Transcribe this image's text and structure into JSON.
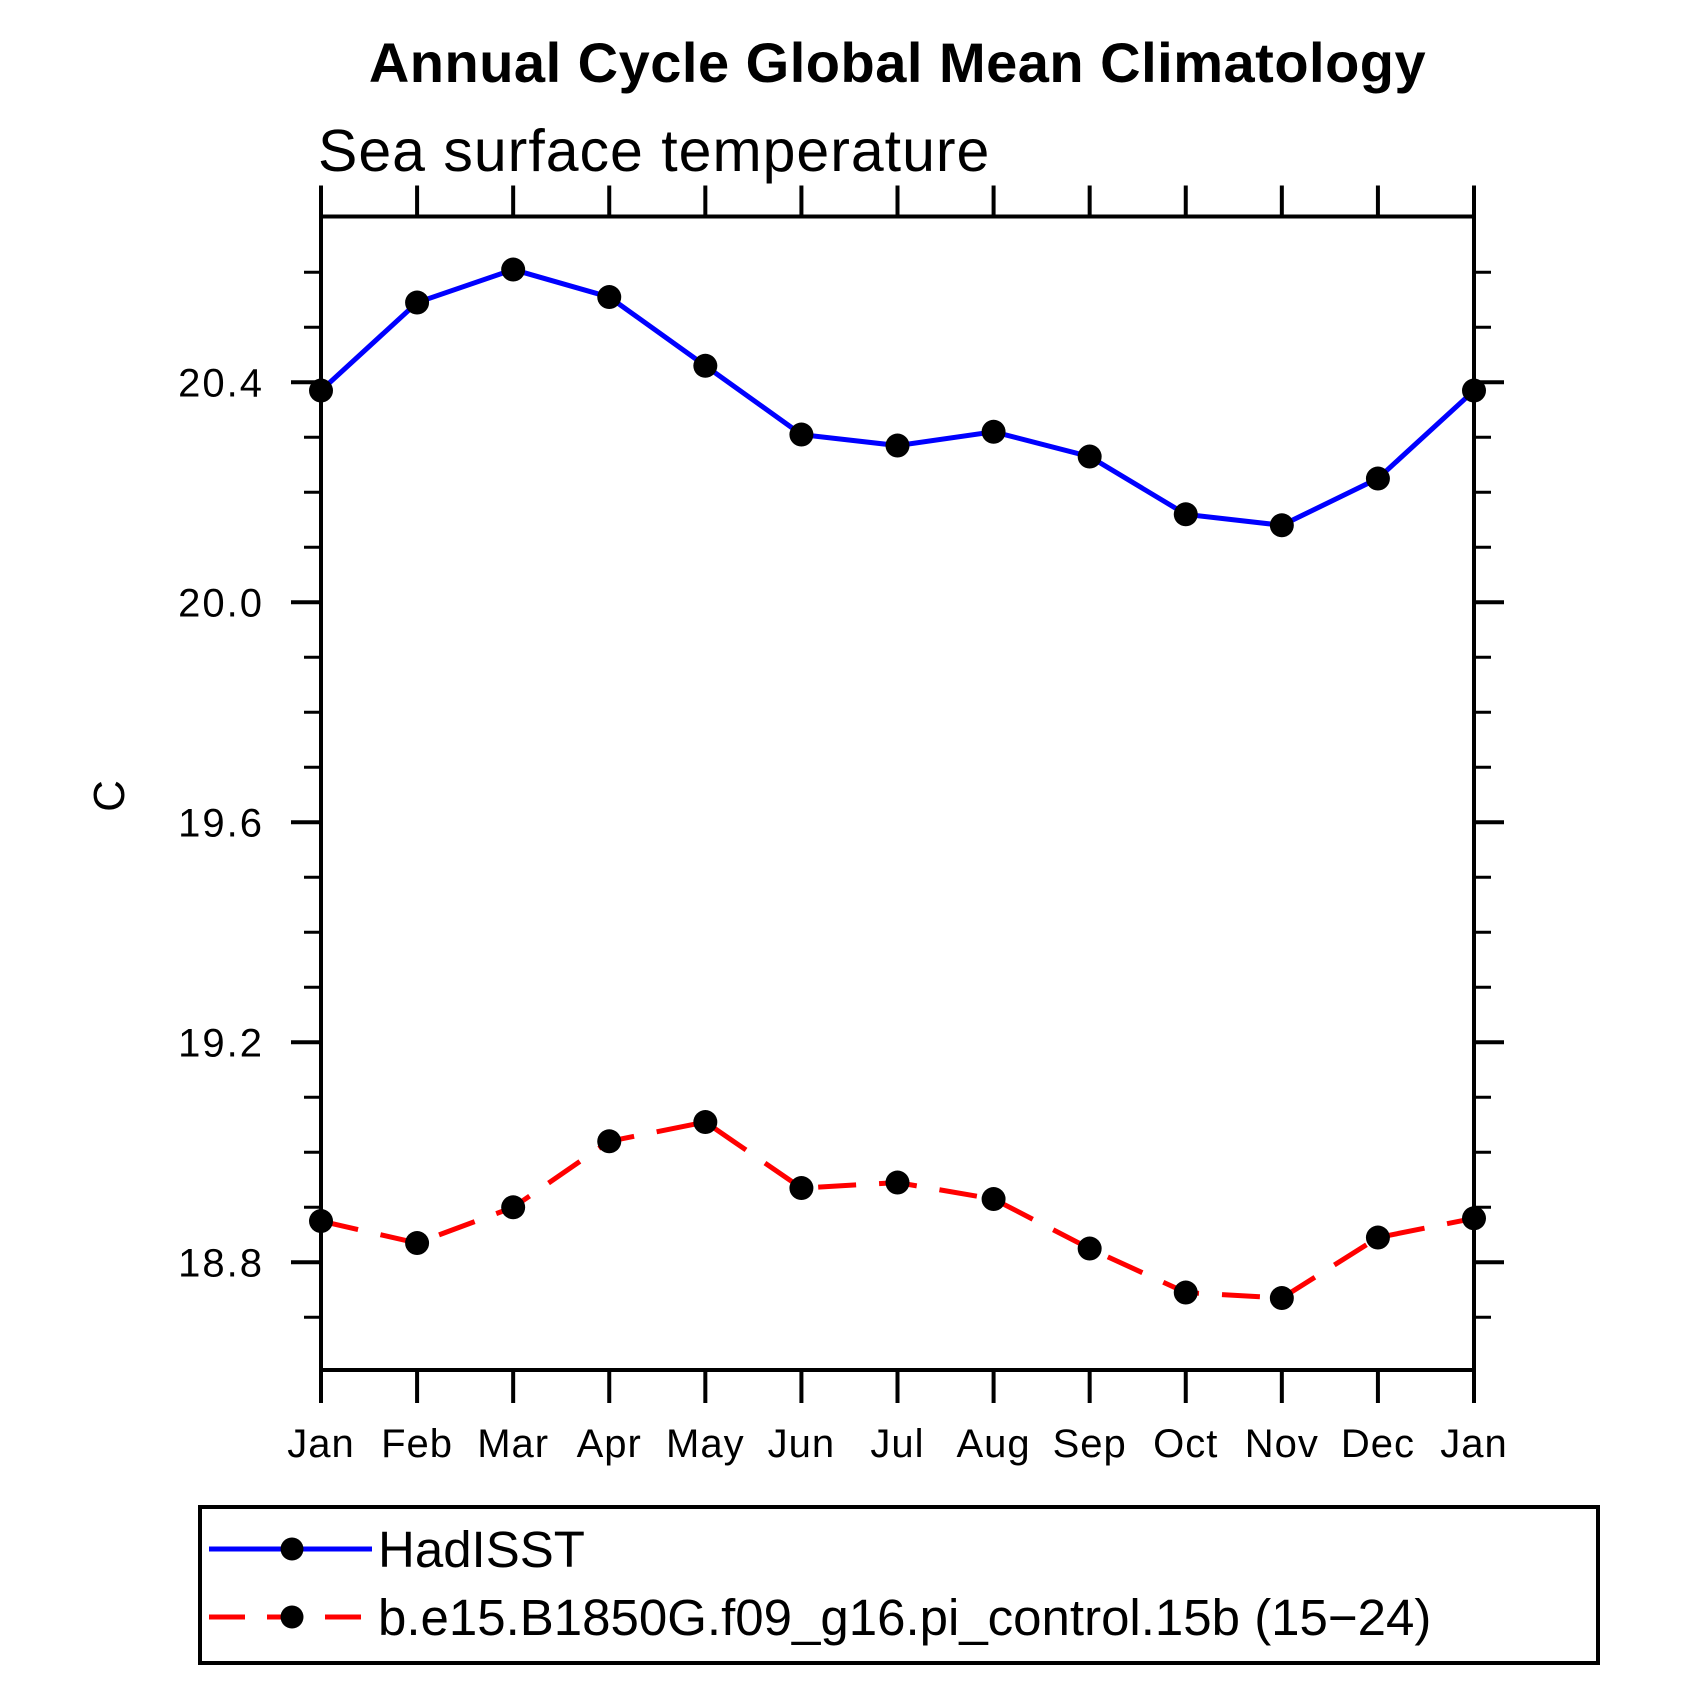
{
  "chart_data": {
    "type": "line",
    "title": "Annual Cycle Global Mean Climatology",
    "subtitle": "Sea surface temperature",
    "ylabel": "C",
    "xlabel": "",
    "categories": [
      "Jan",
      "Feb",
      "Mar",
      "Apr",
      "May",
      "Jun",
      "Jul",
      "Aug",
      "Sep",
      "Oct",
      "Nov",
      "Dec",
      "Jan"
    ],
    "ylim": [
      18.6,
      20.7
    ],
    "y_major_ticks": [
      20.4,
      20.0,
      19.6,
      19.2,
      18.8
    ],
    "y_major_tick_labels": [
      "20.4",
      "20.0",
      "19.6",
      "19.2",
      "18.8"
    ],
    "y_minor_step": 0.1,
    "grid": false,
    "legend_position": "bottom-left",
    "marker": "filled-circle",
    "marker_color": "#000000",
    "series": [
      {
        "name": "HadISST",
        "color": "#0000ff",
        "line_style": "solid",
        "values": [
          20.385,
          20.545,
          20.605,
          20.555,
          20.43,
          20.305,
          20.285,
          20.31,
          20.265,
          20.16,
          20.14,
          20.225,
          20.385
        ]
      },
      {
        "name": "b.e15.B1850G.f09_g16.pi_control.15b (15−24)",
        "color": "#ff0000",
        "line_style": "dashed",
        "values": [
          18.875,
          18.835,
          18.9,
          19.02,
          19.055,
          18.935,
          18.945,
          18.915,
          18.825,
          18.745,
          18.735,
          18.845,
          18.88
        ]
      }
    ]
  }
}
